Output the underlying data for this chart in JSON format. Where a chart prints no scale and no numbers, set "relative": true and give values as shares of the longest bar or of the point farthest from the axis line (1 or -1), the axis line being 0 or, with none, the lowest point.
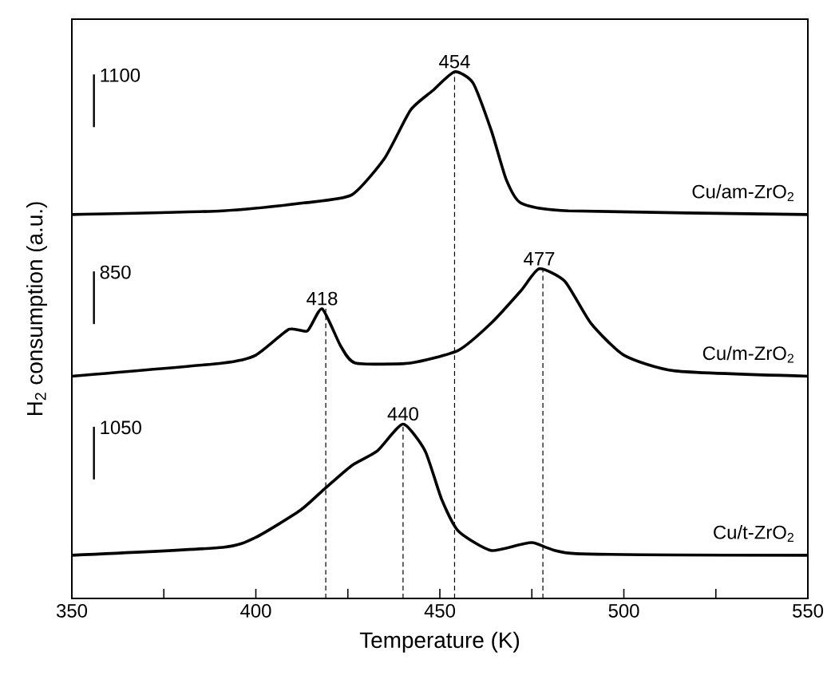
{
  "chart_data": {
    "type": "line",
    "relative": true,
    "xlabel": "Temperature (K)",
    "ylabel": "H$_{2}$ consumption (a.u.)",
    "xlim": [
      350,
      550
    ],
    "xticks": [
      350,
      {
        "value": 375,
        "label": null
      },
      400,
      {
        "value": 425,
        "label": null
      },
      450,
      {
        "value": 475,
        "label": null
      },
      500,
      {
        "value": 525,
        "label": null
      },
      550
    ],
    "grid": false,
    "marker": "none",
    "line_style": "solid",
    "series": [
      {
        "name": "Cu/am-ZrO$_{2}$",
        "color": "#000000",
        "x": [
          350,
          391,
          413,
          426,
          435,
          442,
          448,
          454,
          459,
          464,
          468,
          472,
          485,
          550
        ],
        "values": [
          0.729,
          0.736,
          0.751,
          0.766,
          0.836,
          0.927,
          0.964,
          1.0,
          0.979,
          0.888,
          0.796,
          0.751,
          0.736,
          0.729
        ]
      },
      {
        "name": "Cu/m-ZrO$_{2}$",
        "color": "#000000",
        "x": [
          350,
          391,
          400,
          409,
          414,
          418,
          423,
          427,
          442,
          455,
          464,
          472,
          477,
          484,
          491,
          500,
          514,
          550
        ],
        "values": [
          0.422,
          0.447,
          0.462,
          0.511,
          0.508,
          0.55,
          0.48,
          0.447,
          0.447,
          0.471,
          0.523,
          0.584,
          0.626,
          0.602,
          0.523,
          0.462,
          0.432,
          0.422
        ]
      },
      {
        "name": "Cu/t-ZrO$_{2}$",
        "color": "#000000",
        "x": [
          350,
          391,
          400,
          412,
          418.5,
          426,
          433,
          440,
          446,
          450.5,
          455,
          464,
          475,
          487,
          550
        ],
        "values": [
          0.082,
          0.097,
          0.116,
          0.167,
          0.207,
          0.252,
          0.28,
          0.331,
          0.28,
          0.188,
          0.128,
          0.091,
          0.106,
          0.085,
          0.082
        ]
      }
    ],
    "annotations": [
      {
        "text": "454",
        "x": 454,
        "y": 1.0
      },
      {
        "text": "418",
        "x": 418,
        "y": 0.55
      },
      {
        "text": "477",
        "x": 477,
        "y": 0.626
      },
      {
        "text": "440",
        "x": 440,
        "y": 0.331
      },
      "1100",
      "850",
      "1050"
    ],
    "ref_lines": [
      {
        "axis": "x",
        "value": 454,
        "line_style": "dashed"
      },
      {
        "axis": "x",
        "value": 419,
        "line_style": "dashed"
      },
      {
        "axis": "x",
        "value": 478,
        "line_style": "dashed"
      },
      {
        "axis": "x",
        "value": 440,
        "line_style": "dashed"
      }
    ]
  }
}
